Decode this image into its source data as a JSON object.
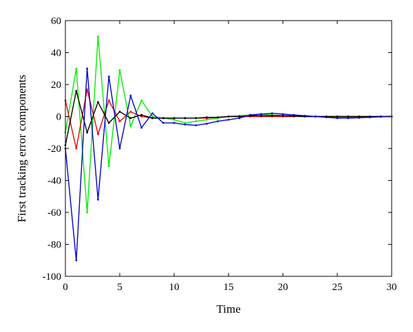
{
  "chart_data": {
    "type": "line",
    "title": "",
    "xlabel": "Time",
    "ylabel": "First tracking error components",
    "xlim": [
      0,
      30
    ],
    "ylim": [
      -100,
      60
    ],
    "xticks": [
      0,
      5,
      10,
      15,
      20,
      25,
      30
    ],
    "yticks": [
      -100,
      -80,
      -60,
      -40,
      -20,
      0,
      20,
      40,
      60
    ],
    "grid": false,
    "legend": "none",
    "x": [
      0,
      1,
      2,
      3,
      4,
      5,
      6,
      7,
      8,
      9,
      10,
      11,
      12,
      13,
      14,
      15,
      16,
      17,
      18,
      19,
      20,
      21,
      22,
      23,
      24,
      25,
      26,
      27,
      28,
      29,
      30
    ],
    "series": [
      {
        "color": "#00ee00",
        "values": [
          -10,
          30,
          -60,
          50,
          -31,
          29,
          -6,
          10,
          0,
          -1,
          -2,
          -4,
          -3,
          -2,
          -1,
          0,
          0.5,
          1,
          1.5,
          1,
          0.5,
          0.5,
          0.2,
          0,
          -0.3,
          -0.5,
          -0.5,
          -0.3,
          -0.2,
          0,
          0
        ]
      },
      {
        "color": "#ee0000",
        "values": [
          10,
          -20,
          17,
          -11,
          10,
          -3,
          3,
          0,
          -1,
          -1,
          -1,
          -1,
          -1,
          -1,
          -0.5,
          0,
          0,
          0,
          0,
          0,
          0,
          0,
          0,
          0,
          0,
          0,
          0,
          0,
          0,
          0,
          0
        ]
      },
      {
        "color": "#000000",
        "values": [
          -18,
          16,
          -10,
          9,
          -4,
          3,
          -1,
          1,
          -1,
          -1,
          -1,
          -1,
          -1,
          -0.5,
          -0.5,
          0,
          0,
          0.5,
          0.5,
          0.5,
          0.5,
          0.3,
          0,
          0,
          0,
          0,
          0,
          0,
          0,
          0,
          0
        ]
      },
      {
        "color": "#0000cc",
        "values": [
          -20,
          -90,
          30,
          -52,
          25,
          -20,
          13,
          -7,
          2,
          -4,
          -4,
          -5,
          -5.5,
          -4.5,
          -3,
          -2,
          -1,
          1,
          1.5,
          2,
          1.5,
          1,
          0.5,
          0,
          -0.5,
          -1,
          -1,
          -0.8,
          -0.5,
          -0.2,
          0
        ]
      }
    ]
  }
}
